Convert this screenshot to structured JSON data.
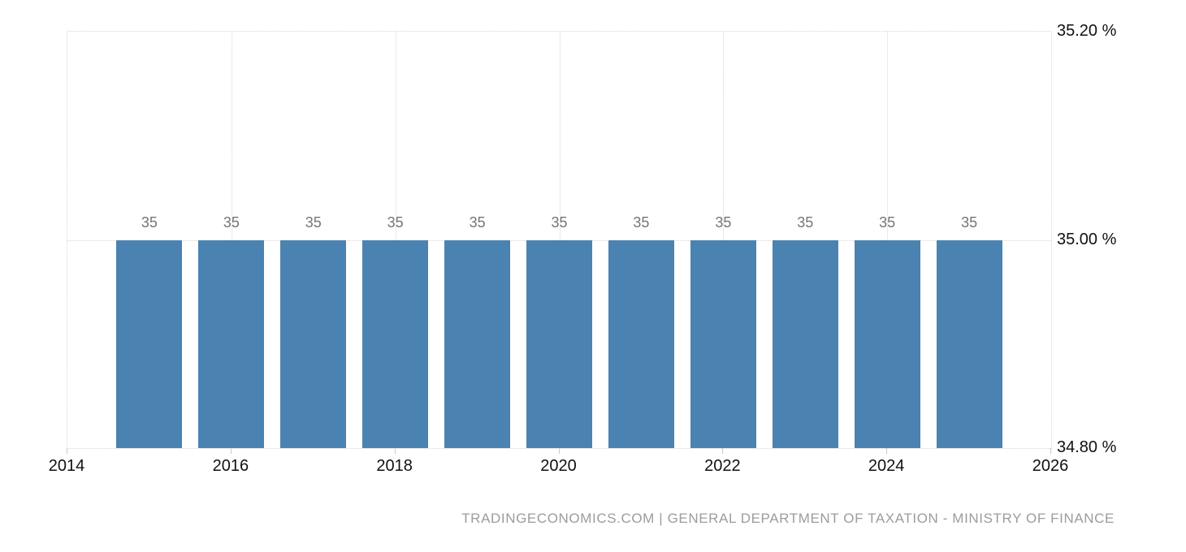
{
  "chart_data": {
    "type": "bar",
    "title": "",
    "xlabel": "",
    "ylabel": "",
    "categories": [
      2015,
      2016,
      2017,
      2018,
      2019,
      2020,
      2021,
      2022,
      2023,
      2024,
      2025
    ],
    "values": [
      35,
      35,
      35,
      35,
      35,
      35,
      35,
      35,
      35,
      35,
      35
    ],
    "bar_labels": [
      "35",
      "35",
      "35",
      "35",
      "35",
      "35",
      "35",
      "35",
      "35",
      "35",
      "35"
    ],
    "xlim": [
      2014,
      2026
    ],
    "ylim": [
      34.8,
      35.2
    ],
    "x_ticks": [
      {
        "value": 2014,
        "label": "2014"
      },
      {
        "value": 2016,
        "label": "2016"
      },
      {
        "value": 2018,
        "label": "2018"
      },
      {
        "value": 2020,
        "label": "2020"
      },
      {
        "value": 2022,
        "label": "2022"
      },
      {
        "value": 2024,
        "label": "2024"
      },
      {
        "value": 2026,
        "label": "2026"
      }
    ],
    "y_ticks": [
      {
        "value": 35.2,
        "label": "35.20 %"
      },
      {
        "value": 35.0,
        "label": "35.00 %"
      },
      {
        "value": 34.8,
        "label": "34.80 %"
      }
    ],
    "grid_vertical_years": [
      2016,
      2018,
      2020,
      2022,
      2024
    ],
    "grid_horizontal_values": [
      35.0
    ],
    "legend": null,
    "grid_style": "dotted"
  },
  "footer": {
    "attribution": "TRADINGECONOMICS.COM | GENERAL DEPARTMENT OF TAXATION - MINISTRY OF FINANCE"
  },
  "colors": {
    "bar_fill": "#4a83b2",
    "grid_line": "#d6d6d6",
    "axis_text": "#111111",
    "bar_label_text": "#757575",
    "footer_text": "#9c9c9c",
    "background": "#ffffff"
  }
}
